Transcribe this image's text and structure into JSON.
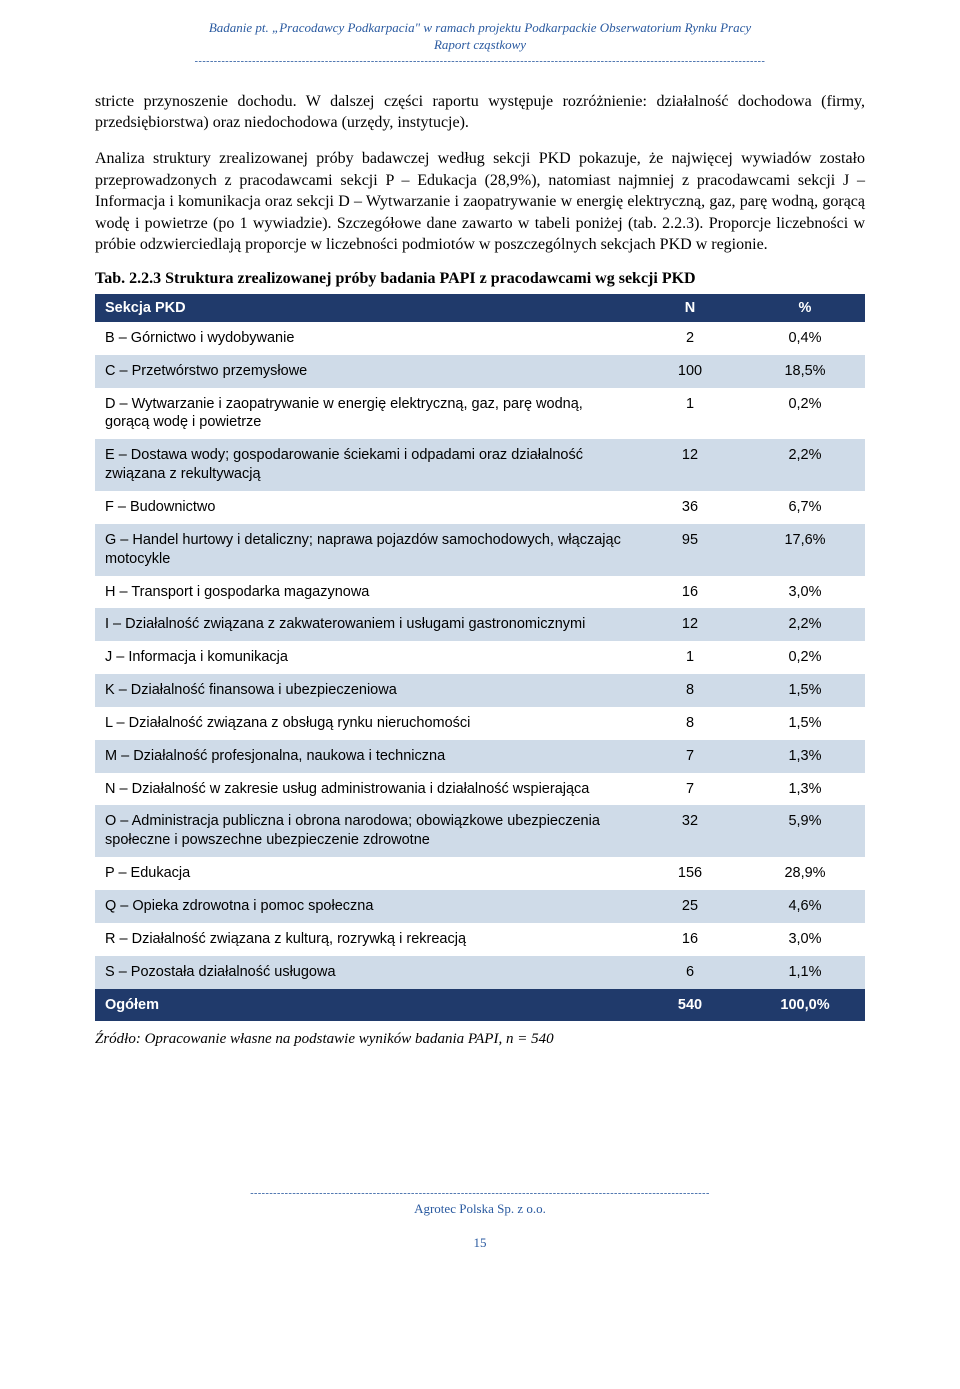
{
  "header": {
    "line1": "Badanie pt. „Pracodawcy Podkarpacia\" w ramach projektu Podkarpackie Obserwatorium Rynku Pracy",
    "line2": "Raport cząstkowy"
  },
  "paragraphs": {
    "p1": "stricte przynoszenie dochodu. W dalszej części raportu występuje rozróżnienie: działalność dochodowa (firmy, przedsiębiorstwa) oraz niedochodowa (urzędy, instytucje).",
    "p2": "Analiza struktury zrealizowanej próby badawczej według sekcji PKD pokazuje, że najwięcej wywiadów zostało przeprowadzonych z pracodawcami sekcji P – Edukacja (28,9%), natomiast najmniej z pracodawcami sekcji J – Informacja i komunikacja oraz sekcji D – Wytwarzanie i zaopatrywanie w energię elektryczną, gaz, parę wodną, gorącą wodę i powietrze (po 1 wywiadzie). Szczegółowe dane zawarto w tabeli poniżej (tab. 2.2.3). Proporcje liczebności w próbie odzwierciedlają proporcje w liczebności podmiotów w poszczególnych sekcjach PKD w regionie."
  },
  "tableCaption": "Tab. 2.2.3 Struktura zrealizowanej próby badania PAPI z pracodawcami wg sekcji PKD",
  "table": {
    "headers": {
      "c0": "Sekcja PKD",
      "c1": "N",
      "c2": "%"
    },
    "rows": [
      {
        "label": "B – Górnictwo i wydobywanie",
        "n": "2",
        "pct": "0,4%"
      },
      {
        "label": "C – Przetwórstwo przemysłowe",
        "n": "100",
        "pct": "18,5%"
      },
      {
        "label": "D – Wytwarzanie i zaopatrywanie w energię elektryczną, gaz, parę wodną, gorącą wodę i powietrze",
        "n": "1",
        "pct": "0,2%"
      },
      {
        "label": "E – Dostawa wody; gospodarowanie ściekami i odpadami oraz działalność związana z rekultywacją",
        "n": "12",
        "pct": "2,2%"
      },
      {
        "label": "F – Budownictwo",
        "n": "36",
        "pct": "6,7%"
      },
      {
        "label": "G – Handel hurtowy i detaliczny; naprawa pojazdów samochodowych, włączając motocykle",
        "n": "95",
        "pct": "17,6%"
      },
      {
        "label": "H – Transport i gospodarka magazynowa",
        "n": "16",
        "pct": "3,0%"
      },
      {
        "label": "I – Działalność związana z zakwaterowaniem i usługami gastronomicznymi",
        "n": "12",
        "pct": "2,2%"
      },
      {
        "label": "J – Informacja i komunikacja",
        "n": "1",
        "pct": "0,2%"
      },
      {
        "label": "K – Działalność finansowa i ubezpieczeniowa",
        "n": "8",
        "pct": "1,5%"
      },
      {
        "label": "L – Działalność związana z obsługą rynku nieruchomości",
        "n": "8",
        "pct": "1,5%"
      },
      {
        "label": "M – Działalność profesjonalna, naukowa i techniczna",
        "n": "7",
        "pct": "1,3%"
      },
      {
        "label": "N – Działalność w zakresie usług administrowania i działalność wspierająca",
        "n": "7",
        "pct": "1,3%"
      },
      {
        "label": "O – Administracja publiczna i obrona narodowa; obowiązkowe ubezpieczenia społeczne i powszechne ubezpieczenie zdrowotne",
        "n": "32",
        "pct": "5,9%"
      },
      {
        "label": "P – Edukacja",
        "n": "156",
        "pct": "28,9%"
      },
      {
        "label": "Q – Opieka zdrowotna i pomoc społeczna",
        "n": "25",
        "pct": "4,6%"
      },
      {
        "label": "R – Działalność związana z kulturą, rozrywką i rekreacją",
        "n": "16",
        "pct": "3,0%"
      },
      {
        "label": "S – Pozostała działalność usługowa",
        "n": "6",
        "pct": "1,1%"
      }
    ],
    "total": {
      "label": "Ogółem",
      "n": "540",
      "pct": "100,0%"
    }
  },
  "sourceNote": "Źródło: Opracowanie własne na podstawie wyników badania PAPI, n = 540",
  "footer": {
    "company": "Agrotec Polska Sp. z o.o.",
    "pageNumber": "15"
  },
  "style": {
    "headerColor": "#2a5aa0",
    "tableHeaderBg": "#203a6b",
    "rowEvenBg": "#cfdbe8",
    "rowOddBg": "#ffffff"
  }
}
